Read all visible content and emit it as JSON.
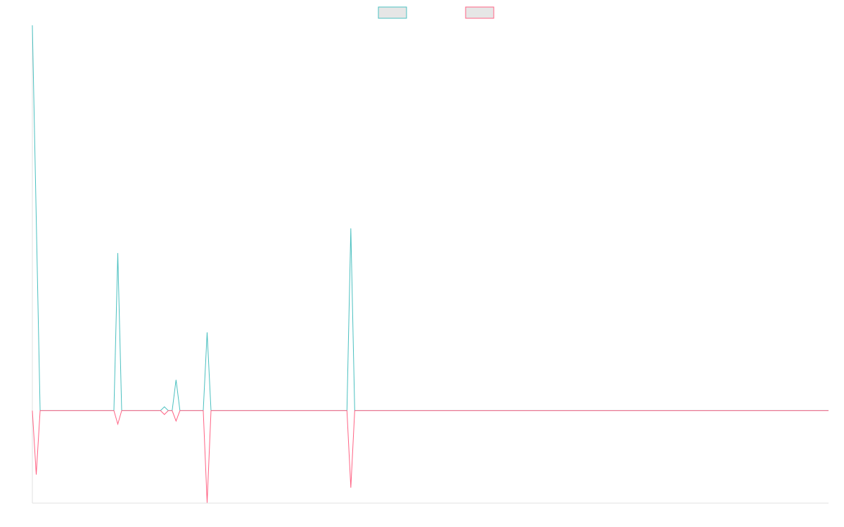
{
  "chart_data": {
    "type": "line",
    "legend": "top",
    "grid": false,
    "ylim": [
      -2.4,
      10
    ],
    "series": [
      {
        "color": "#4bc0c0",
        "values": [
          10,
          5,
          0,
          0,
          0,
          0,
          0,
          0,
          0,
          0,
          0,
          0,
          0,
          0,
          0,
          0,
          0,
          0,
          0,
          0,
          0,
          0,
          4.09,
          0,
          0,
          0,
          0,
          0,
          0,
          0,
          0,
          0,
          0,
          0,
          0.1,
          0,
          0,
          0.8,
          0,
          0,
          0,
          0,
          0,
          0,
          0,
          2.03,
          0,
          0,
          0,
          0,
          0,
          0,
          0,
          0,
          0,
          0,
          0,
          0,
          0,
          0,
          0,
          0,
          0,
          0,
          0,
          0,
          0,
          0,
          0,
          0,
          0,
          0,
          0,
          0,
          0,
          0,
          0,
          0,
          0,
          0,
          0,
          0,
          4.73,
          0,
          0,
          0,
          0,
          0,
          0,
          0,
          0,
          0,
          0,
          0,
          0,
          0,
          0,
          0,
          0,
          0,
          0,
          0,
          0,
          0,
          0,
          0,
          0,
          0,
          0,
          0,
          0,
          0,
          0,
          0,
          0,
          0,
          0,
          0,
          0,
          0,
          0,
          0,
          0,
          0,
          0,
          0,
          0,
          0,
          0,
          0,
          0,
          0,
          0,
          0,
          0,
          0,
          0,
          0,
          0,
          0,
          0,
          0,
          0,
          0,
          0,
          0,
          0,
          0,
          0,
          0,
          0,
          0,
          0,
          0,
          0,
          0,
          0,
          0,
          0,
          0,
          0,
          0,
          0,
          0,
          0,
          0,
          0,
          0,
          0,
          0,
          0,
          0,
          0,
          0,
          0,
          0,
          0,
          0,
          0,
          0,
          0,
          0,
          0,
          0,
          0,
          0,
          0,
          0,
          0,
          0,
          0,
          0,
          0,
          0,
          0,
          0,
          0,
          0,
          0,
          0,
          0,
          0,
          0,
          0,
          0,
          0
        ]
      },
      {
        "color": "#ff6384",
        "values": [
          0,
          -1.66,
          0,
          0,
          0,
          0,
          0,
          0,
          0,
          0,
          0,
          0,
          0,
          0,
          0,
          0,
          0,
          0,
          0,
          0,
          0,
          0,
          -0.35,
          0,
          0,
          0,
          0,
          0,
          0,
          0,
          0,
          0,
          0,
          0,
          -0.1,
          0,
          0,
          -0.27,
          0,
          0,
          0,
          0,
          0,
          0,
          0,
          -2.39,
          0,
          0,
          0,
          0,
          0,
          0,
          0,
          0,
          0,
          0,
          0,
          0,
          0,
          0,
          0,
          0,
          0,
          0,
          0,
          0,
          0,
          0,
          0,
          0,
          0,
          0,
          0,
          0,
          0,
          0,
          0,
          0,
          0,
          0,
          0,
          0,
          -2.0,
          0,
          0,
          0,
          0,
          0,
          0,
          0,
          0,
          0,
          0,
          0,
          0,
          0,
          0,
          0,
          0,
          0,
          0,
          0,
          0,
          0,
          0,
          0,
          0,
          0,
          0,
          0,
          0,
          0,
          0,
          0,
          0,
          0,
          0,
          0,
          0,
          0,
          0,
          0,
          0,
          0,
          0,
          0,
          0,
          0,
          0,
          0,
          0,
          0,
          0,
          0,
          0,
          0,
          0,
          0,
          0,
          0,
          0,
          0,
          0,
          0,
          0,
          0,
          0,
          0,
          0,
          0,
          0,
          0,
          0,
          0,
          0,
          0,
          0,
          0,
          0,
          0,
          0,
          0,
          0,
          0,
          0,
          0,
          0,
          0,
          0,
          0,
          0,
          0,
          0,
          0,
          0,
          0,
          0,
          0,
          0,
          0,
          0,
          0,
          0,
          0,
          0,
          0,
          0,
          0,
          0,
          0,
          0,
          0,
          0,
          0,
          0,
          0,
          0,
          0,
          0,
          0,
          0,
          0,
          0,
          0,
          0,
          0
        ]
      }
    ]
  }
}
